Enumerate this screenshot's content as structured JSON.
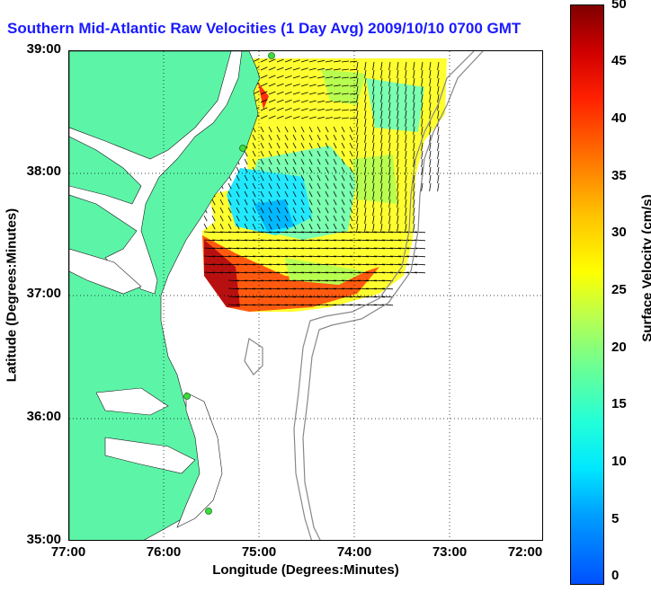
{
  "title": "Southern Mid-Atlantic Raw Velocities (1 Day Avg) 2009/10/10 0700 GMT",
  "map": {
    "x_axis_label": "Longitude (Degrees:Minutes)",
    "y_axis_label": "Latitude (Degrees:Minutes)",
    "x_ticks": [
      "77:00",
      "76:00",
      "75:00",
      "74:00",
      "73:00",
      "72:00"
    ],
    "y_ticks": [
      "39:00",
      "38:00",
      "37:00",
      "36:00",
      "35:00"
    ],
    "lon_range": [
      -77,
      -72
    ],
    "lat_range": [
      35,
      39
    ],
    "land_color": "#5cf5a8",
    "grid": "dotted"
  },
  "colorbar": {
    "title": "Surface Velocity (cm/s)",
    "ticks": [
      "50",
      "45",
      "40",
      "35",
      "30",
      "25",
      "20",
      "15",
      "10",
      "5",
      "0"
    ],
    "range": [
      0,
      50
    ]
  }
}
